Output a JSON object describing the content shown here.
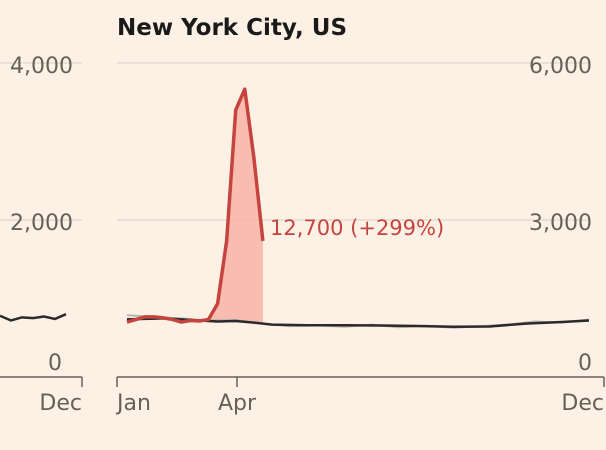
{
  "chart_data": {
    "type": "line",
    "title": "New York City, US",
    "left_panel": {
      "y_ticks": [
        "4,000",
        "2,000",
        "0"
      ],
      "ylim": [
        0,
        4000
      ],
      "x_ticks": [
        "Dec"
      ],
      "series": [
        {
          "values": [
            780,
            720,
            760,
            750,
            770,
            740,
            800
          ]
        }
      ]
    },
    "main_panel": {
      "x_ticks": [
        "Jan",
        "Apr",
        "Dec"
      ],
      "right_y_ticks": [
        "6,000",
        "3,000",
        "0"
      ],
      "ylim": [
        0,
        6000
      ],
      "x_range": [
        1,
        52
      ],
      "series": [
        {
          "role": "2020",
          "color": "#c5453e",
          "x": [
            1,
            2,
            3,
            4,
            5,
            6,
            7,
            8,
            9,
            10,
            11,
            12,
            13,
            14,
            15,
            16
          ],
          "values": [
            1050,
            1100,
            1150,
            1150,
            1130,
            1100,
            1050,
            1080,
            1070,
            1100,
            1400,
            2600,
            5100,
            5500,
            4200,
            2600
          ]
        },
        {
          "role": "baseline average",
          "color": "#2a2a2a",
          "x": [
            1,
            5,
            9,
            11,
            13,
            15,
            17,
            21,
            25,
            29,
            33,
            37,
            41,
            45,
            49,
            52
          ],
          "values": [
            1100,
            1120,
            1080,
            1060,
            1070,
            1040,
            1000,
            990,
            990,
            985,
            975,
            960,
            965,
            1020,
            1050,
            1080
          ]
        },
        {
          "role": "prior years",
          "color": "#b8b2ac",
          "x": [
            1,
            4,
            7,
            10,
            13,
            16,
            19,
            22,
            25,
            28,
            31,
            34,
            37,
            40,
            43,
            46,
            49,
            52
          ],
          "values": [
            1180,
            1150,
            1120,
            1080,
            1090,
            1020,
            970,
            990,
            960,
            1000,
            950,
            980,
            940,
            970,
            1000,
            1060,
            1040,
            1100
          ]
        }
      ],
      "annotation": "12,700 (+299%)"
    }
  }
}
